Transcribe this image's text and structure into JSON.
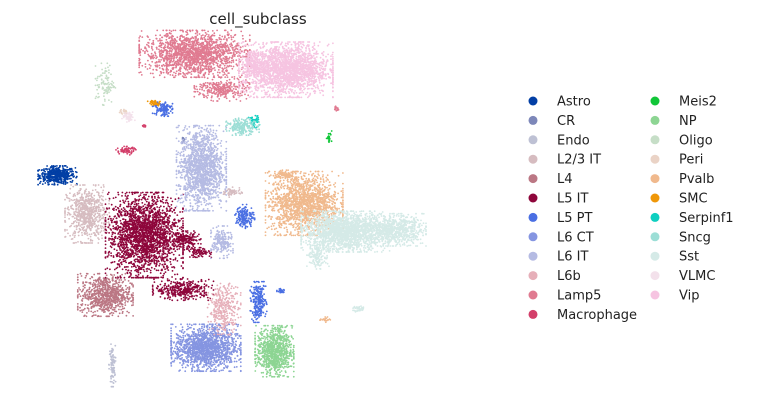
{
  "chart_data": {
    "type": "scatter",
    "title": "cell_subclass",
    "xlabel": "",
    "ylabel": "",
    "axes_visible": false,
    "grid": false,
    "legend_placement": "right",
    "series": [
      {
        "name": "Astro",
        "color": "#023fa5",
        "clusters": [
          [
            0.06,
            0.61,
            0.035,
            0.022,
            500
          ]
        ]
      },
      {
        "name": "CR",
        "color": "#7d87b9",
        "clusters": [
          [
            0.335,
            0.71,
            0.003,
            0.008,
            15
          ]
        ]
      },
      {
        "name": "Endo",
        "color": "#bec1d4",
        "clusters": [
          [
            0.18,
            0.07,
            0.006,
            0.05,
            90
          ]
        ]
      },
      {
        "name": "L2/3 IT",
        "color": "#d6bcc0",
        "clusters": [
          [
            0.125,
            0.5,
            0.04,
            0.068,
            700
          ],
          [
            0.44,
            0.562,
            0.02,
            0.012,
            60
          ]
        ]
      },
      {
        "name": "L4",
        "color": "#bb7784",
        "clusters": [
          [
            0.165,
            0.27,
            0.05,
            0.05,
            800
          ]
        ]
      },
      {
        "name": "L5 IT",
        "color": "#8e063b",
        "clusters": [
          [
            0.25,
            0.44,
            0.07,
            0.1,
            2200
          ],
          [
            0.335,
            0.285,
            0.055,
            0.025,
            350
          ],
          [
            0.34,
            0.425,
            0.028,
            0.022,
            180
          ],
          [
            0.37,
            0.39,
            0.022,
            0.012,
            80
          ]
        ]
      },
      {
        "name": "L5 PT",
        "color": "#4a6fe3",
        "clusters": [
          [
            0.47,
            0.493,
            0.018,
            0.028,
            160
          ],
          [
            0.5,
            0.25,
            0.015,
            0.048,
            240
          ],
          [
            0.55,
            0.282,
            0.008,
            0.006,
            25
          ],
          [
            0.29,
            0.8,
            0.018,
            0.02,
            120
          ]
        ]
      },
      {
        "name": "L6 CT",
        "color": "#8595e1",
        "clusters": [
          [
            0.385,
            0.12,
            0.063,
            0.055,
            1500
          ]
        ]
      },
      {
        "name": "L6 IT",
        "color": "#b5bbe3",
        "clusters": [
          [
            0.375,
            0.63,
            0.045,
            0.1,
            1500
          ],
          [
            0.42,
            0.42,
            0.02,
            0.038,
            200
          ]
        ]
      },
      {
        "name": "L6b",
        "color": "#e6afb9",
        "clusters": [
          [
            0.425,
            0.23,
            0.03,
            0.06,
            320
          ]
        ]
      },
      {
        "name": "Lamp5",
        "color": "#e07b91",
        "clusters": [
          [
            0.36,
            0.955,
            0.1,
            0.055,
            1700
          ],
          [
            0.42,
            0.855,
            0.05,
            0.028,
            300
          ],
          [
            0.67,
            0.8,
            0.006,
            0.006,
            15
          ]
        ]
      },
      {
        "name": "Macrophage",
        "color": "#d33f6a",
        "clusters": [
          [
            0.21,
            0.68,
            0.018,
            0.01,
            70
          ],
          [
            0.25,
            0.75,
            0.004,
            0.004,
            8
          ]
        ]
      },
      {
        "name": "Meis2",
        "color": "#11c638",
        "clusters": [
          [
            0.655,
            0.72,
            0.005,
            0.013,
            25
          ]
        ]
      },
      {
        "name": "NP",
        "color": "#8dd593",
        "clusters": [
          [
            0.535,
            0.11,
            0.035,
            0.06,
            900
          ]
        ]
      },
      {
        "name": "Oligo",
        "color": "#c6dec7",
        "clusters": [
          [
            0.165,
            0.87,
            0.018,
            0.05,
            100
          ]
        ]
      },
      {
        "name": "Peri",
        "color": "#ead3c6",
        "clusters": [
          [
            0.205,
            0.79,
            0.01,
            0.01,
            20
          ]
        ]
      },
      {
        "name": "Pvalb",
        "color": "#f0b98d",
        "clusters": [
          [
            0.6,
            0.53,
            0.07,
            0.075,
            1600
          ],
          [
            0.56,
            0.61,
            0.02,
            0.012,
            100
          ],
          [
            0.645,
            0.2,
            0.01,
            0.006,
            20
          ]
        ]
      },
      {
        "name": "SMC",
        "color": "#ef9708",
        "clusters": [
          [
            0.272,
            0.815,
            0.012,
            0.008,
            40
          ]
        ]
      },
      {
        "name": "Serpinf1",
        "color": "#0fcfc0",
        "clusters": [
          [
            0.49,
            0.763,
            0.01,
            0.015,
            50
          ]
        ]
      },
      {
        "name": "Sncg",
        "color": "#9cded6",
        "clusters": [
          [
            0.465,
            0.748,
            0.03,
            0.02,
            200
          ]
        ]
      },
      {
        "name": "Sst",
        "color": "#d5eae7",
        "clusters": [
          [
            0.69,
            0.45,
            0.08,
            0.048,
            2000
          ],
          [
            0.8,
            0.455,
            0.055,
            0.038,
            700
          ],
          [
            0.63,
            0.38,
            0.02,
            0.03,
            150
          ],
          [
            0.72,
            0.23,
            0.011,
            0.008,
            40
          ]
        ]
      },
      {
        "name": "VLMC",
        "color": "#f3e1eb",
        "clusters": [
          [
            0.215,
            0.775,
            0.012,
            0.012,
            50
          ]
        ]
      },
      {
        "name": "Vip",
        "color": "#f6c4e1",
        "clusters": [
          [
            0.56,
            0.91,
            0.085,
            0.065,
            2200
          ],
          [
            0.49,
            0.93,
            0.02,
            0.03,
            200
          ]
        ]
      }
    ]
  }
}
